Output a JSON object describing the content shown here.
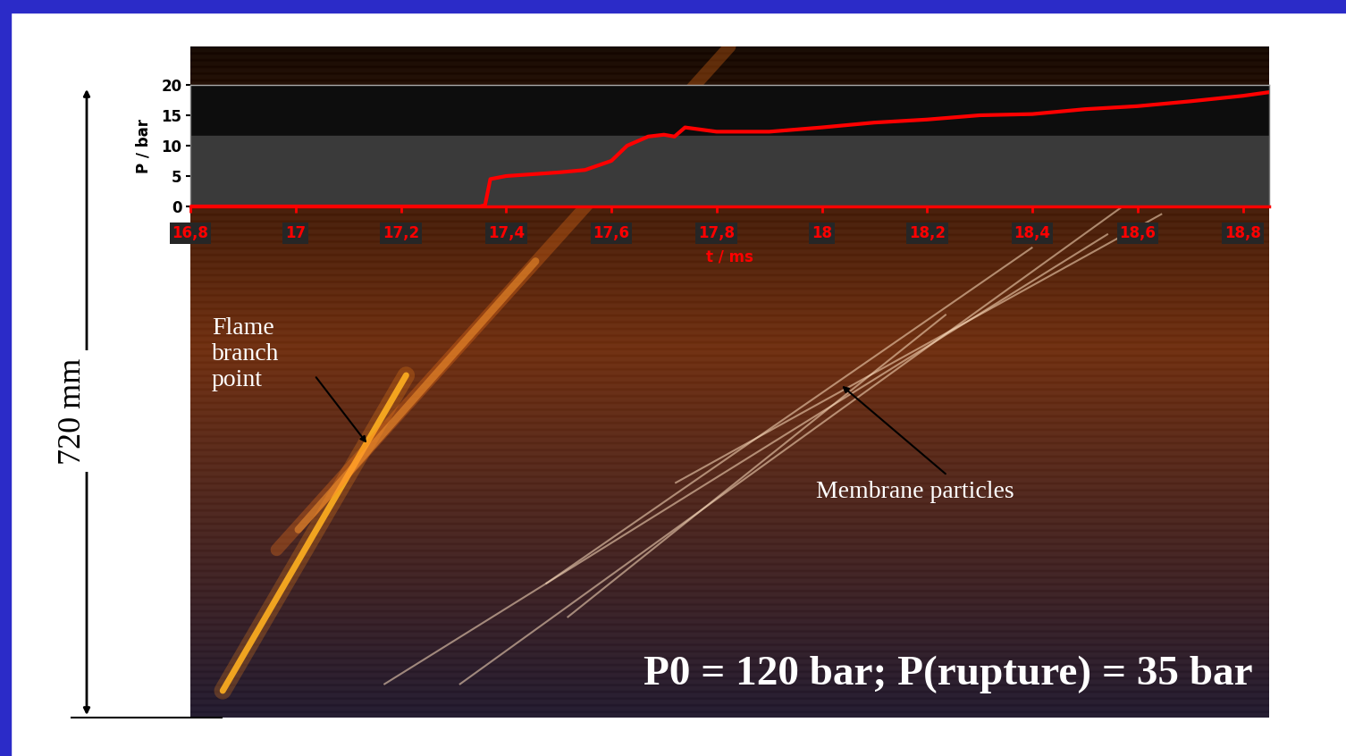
{
  "chart_data": {
    "type": "line",
    "x_label": "t / ms",
    "y_label": "P / bar",
    "xlim": [
      16.8,
      18.85
    ],
    "ylim": [
      0,
      20
    ],
    "xticks": [
      {
        "value": 16.8,
        "label": "16,8"
      },
      17,
      {
        "value": 17.2,
        "label": "17,2"
      },
      {
        "value": 17.4,
        "label": "17,4"
      },
      {
        "value": 17.6,
        "label": "17,6"
      },
      {
        "value": 17.8,
        "label": "17,8"
      },
      18,
      {
        "value": 18.2,
        "label": "18,2"
      },
      {
        "value": 18.4,
        "label": "18,4"
      },
      {
        "value": 18.6,
        "label": "18,6"
      },
      {
        "value": 18.8,
        "label": "18,8"
      }
    ],
    "yticks": [
      0,
      5,
      10,
      15,
      20
    ],
    "x": [
      16.8,
      17.0,
      17.2,
      17.35,
      17.36,
      17.37,
      17.4,
      17.5,
      17.55,
      17.6,
      17.63,
      17.67,
      17.7,
      17.72,
      17.74,
      17.8,
      17.9,
      18.0,
      18.1,
      18.2,
      18.3,
      18.4,
      18.5,
      18.6,
      18.7,
      18.8,
      18.85
    ],
    "values": [
      0,
      0,
      0,
      0,
      0.2,
      4.5,
      5,
      5.6,
      6,
      7.5,
      10,
      11.5,
      11.8,
      11.5,
      13,
      12.3,
      12.3,
      13,
      13.8,
      14.3,
      15,
      15.2,
      16,
      16.5,
      17.3,
      18.2,
      18.8
    ],
    "color": "#ff0000",
    "annotations": [
      "Flame branch point",
      "Membrane particles",
      "720 mm",
      "P0 = 120 bar; P(rupture) = 35 bar"
    ]
  }
}
